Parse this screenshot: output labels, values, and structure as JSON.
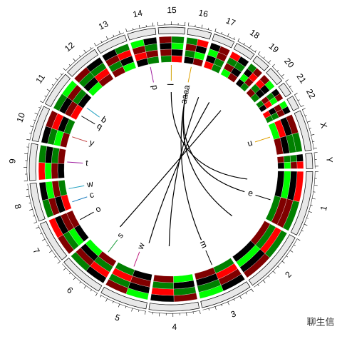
{
  "chart_data": {
    "type": "circos",
    "chromosomes": [
      "1",
      "2",
      "3",
      "4",
      "5",
      "6",
      "7",
      "8",
      "9",
      "10",
      "11",
      "12",
      "13",
      "14",
      "15",
      "16",
      "17",
      "18",
      "19",
      "20",
      "21",
      "22",
      "X",
      "Y"
    ],
    "lengths": [
      249,
      243,
      198,
      191,
      181,
      171,
      159,
      146,
      141,
      136,
      135,
      134,
      115,
      107,
      102,
      90,
      81,
      78,
      59,
      63,
      48,
      51,
      155,
      59
    ],
    "heatmap_values": [
      [
        2,
        -1,
        0,
        1,
        -2,
        1,
        0,
        -1
      ],
      [
        -1,
        1,
        2,
        0,
        -1,
        -2,
        1,
        0
      ],
      [
        0,
        -2,
        1,
        -1,
        2,
        0,
        -1,
        1
      ],
      [
        1,
        0,
        -1,
        2,
        0,
        -1,
        -2,
        1
      ],
      [
        -2,
        1,
        0,
        -1,
        1,
        2,
        0,
        -1
      ],
      [
        0,
        -1,
        2,
        1,
        -1,
        0,
        1,
        -2
      ],
      [
        1,
        2,
        -1,
        0,
        -2,
        1,
        0,
        1
      ],
      [
        -1,
        0,
        1,
        -2,
        0,
        1,
        2,
        -1
      ],
      [
        2,
        -1,
        -2,
        0,
        1,
        -1,
        0,
        1
      ],
      [
        0,
        1,
        -1,
        2,
        -2,
        0,
        1,
        -1
      ],
      [
        -1,
        -2,
        0,
        1,
        1,
        -1,
        2,
        0
      ],
      [
        1,
        0,
        -1,
        -1,
        0,
        2,
        -2,
        1
      ],
      [
        0,
        -1,
        1,
        2,
        -1,
        0,
        1,
        -2
      ],
      [
        -2,
        0,
        1,
        -1,
        2,
        1,
        0,
        -1
      ],
      [
        1,
        -1,
        0,
        -2,
        1,
        0,
        -1,
        2
      ],
      [
        -1,
        2,
        1,
        0,
        -1,
        -2,
        0,
        1
      ],
      [
        0,
        1,
        -2,
        1,
        0,
        -1,
        2,
        -1
      ],
      [
        2,
        0,
        -1,
        -1,
        1,
        0,
        -2,
        1
      ],
      [
        -1,
        1,
        0,
        2,
        -2,
        1,
        0,
        -1
      ],
      [
        1,
        -2,
        2,
        0,
        -1,
        0,
        1,
        -1
      ],
      [
        0,
        1,
        -1,
        -2,
        1,
        2,
        -1,
        0
      ],
      [
        -2,
        0,
        1,
        1,
        0,
        -1,
        2,
        -1
      ],
      [
        1,
        -1,
        0,
        -1,
        2,
        0,
        -2,
        1
      ],
      [
        0,
        2,
        -1,
        1,
        -1,
        -2,
        1,
        0
      ]
    ],
    "heatmap_range": [
      -2,
      2
    ],
    "heatmap_colors": {
      "low": "#00ff00",
      "mid": "#000000",
      "high": "#ff0000"
    },
    "labels": [
      {
        "chr": 15,
        "pos": 40,
        "text": "aaaa",
        "color": "#e0a000"
      },
      {
        "chr": 13,
        "pos": 60,
        "text": "p",
        "color": "#a020a0"
      },
      {
        "chr": 14,
        "pos": 50,
        "text": "l",
        "color": "#d0a000"
      },
      {
        "chr": 10,
        "pos": 80,
        "text": "b",
        "color": "#20a0c0"
      },
      {
        "chr": 10,
        "pos": 30,
        "text": "q",
        "color": "#000000"
      },
      {
        "chr": 9,
        "pos": 60,
        "text": "y",
        "color": "#c04040"
      },
      {
        "chr": 8,
        "pos": 80,
        "text": "t",
        "color": "#a020a0"
      },
      {
        "chr": 7,
        "pos": 100,
        "text": "w",
        "color": "#20a0c0"
      },
      {
        "chr": 7,
        "pos": 30,
        "text": "c",
        "color": "#2080c0"
      },
      {
        "chr": 6,
        "pos": 100,
        "text": "o",
        "color": "#000000"
      },
      {
        "chr": 5,
        "pos": 60,
        "text": "s",
        "color": "#20a040"
      },
      {
        "chr": 4,
        "pos": 100,
        "text": "w",
        "color": "#c02080"
      },
      {
        "chr": 2,
        "pos": 100,
        "text": "m",
        "color": "#000000"
      },
      {
        "chr": 0,
        "pos": 150,
        "text": "e",
        "color": "#000000"
      },
      {
        "chr": 22,
        "pos": 60,
        "text": "u",
        "color": "#e0a000"
      }
    ],
    "links": [
      {
        "from": [
          15,
          40
        ],
        "to": [
          0,
          150
        ]
      },
      {
        "from": [
          15,
          40
        ],
        "to": [
          1,
          80
        ]
      },
      {
        "from": [
          15,
          40
        ],
        "to": [
          2,
          100
        ]
      },
      {
        "from": [
          16,
          30
        ],
        "to": [
          3,
          120
        ]
      },
      {
        "from": [
          17,
          20
        ],
        "to": [
          4,
          60
        ]
      },
      {
        "from": [
          14,
          50
        ],
        "to": [
          0,
          60
        ]
      },
      {
        "from": [
          18,
          30
        ],
        "to": [
          5,
          100
        ]
      }
    ],
    "watermark": "聊生信"
  }
}
